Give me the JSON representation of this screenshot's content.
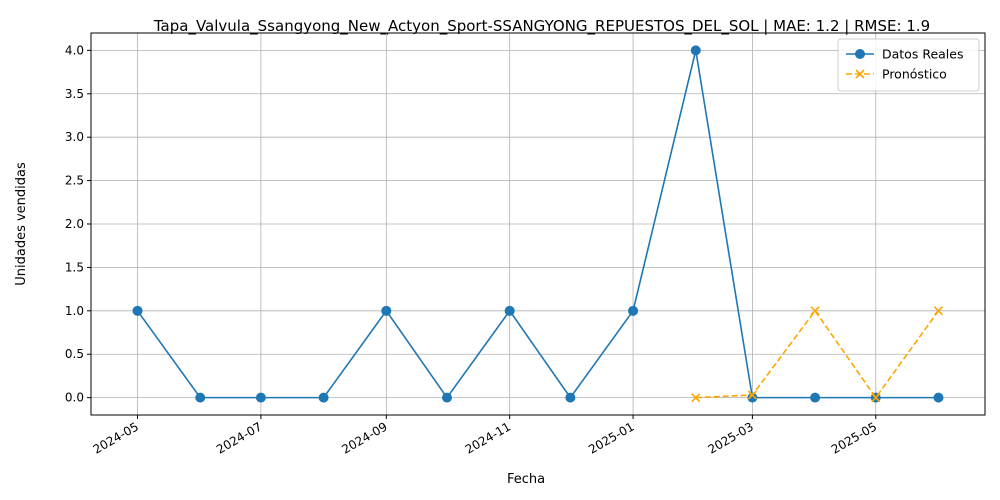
{
  "chart_data": {
    "type": "line",
    "title": "Tapa_Valvula_Ssangyong_New_Actyon_Sport-SSANGYONG_REPUESTOS_DEL_SOL | MAE: 1.2 | RMSE: 1.9",
    "xlabel": "Fecha",
    "ylabel": "Unidades vendidas",
    "x_ticks": [
      "2024-05",
      "2024-07",
      "2024-09",
      "2024-11",
      "2025-01",
      "2025-03",
      "2025-05"
    ],
    "y_ticks": [
      "0.0",
      "0.5",
      "1.0",
      "1.5",
      "2.0",
      "2.5",
      "3.0",
      "3.5",
      "4.0"
    ],
    "ylim": [
      -0.2,
      4.2
    ],
    "xlim": [
      "2024-04-08",
      "2025-06-24"
    ],
    "grid": true,
    "legend_position": "top-right",
    "series": [
      {
        "name": "Datos Reales",
        "color": "#1f77b4",
        "style": "solid",
        "marker": "circle",
        "x": [
          "2024-05-01",
          "2024-06-01",
          "2024-07-01",
          "2024-08-01",
          "2024-09-01",
          "2024-10-01",
          "2024-11-01",
          "2024-12-01",
          "2025-01-01",
          "2025-02-01",
          "2025-03-01",
          "2025-04-01",
          "2025-05-01",
          "2025-06-01"
        ],
        "y": [
          1,
          0,
          0,
          0,
          1,
          0,
          1,
          0,
          1,
          4,
          0,
          0,
          0,
          0
        ]
      },
      {
        "name": "Pronóstico",
        "color": "#ffa500",
        "style": "dashed",
        "marker": "x",
        "x": [
          "2025-02-01",
          "2025-03-01",
          "2025-04-01",
          "2025-05-01",
          "2025-06-01"
        ],
        "y": [
          0.0,
          0.03,
          1.0,
          0.0,
          1.0
        ]
      }
    ]
  }
}
